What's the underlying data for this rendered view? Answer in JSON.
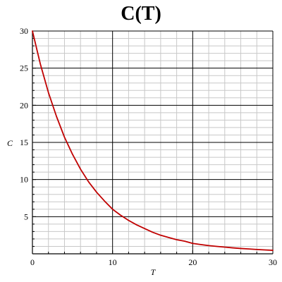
{
  "chart_data": {
    "type": "line",
    "title": "C(T)",
    "xlabel": "T",
    "ylabel": "C",
    "xlim": [
      0,
      30
    ],
    "ylim": [
      0,
      30
    ],
    "x_ticks": [
      0,
      10,
      20,
      30
    ],
    "y_ticks": [
      5,
      10,
      15,
      20,
      25,
      30
    ],
    "grid": true,
    "series_color": "#c00000",
    "series": [
      {
        "x": [
          0,
          1,
          2,
          3,
          4,
          5,
          6,
          7,
          8,
          9,
          10,
          11,
          12,
          13,
          14,
          15,
          16,
          17,
          18,
          19,
          20,
          21,
          22,
          23,
          24,
          25,
          26,
          27,
          28,
          29,
          30
        ],
        "values": [
          30,
          25.5,
          21.7,
          18.5,
          15.7,
          13.4,
          11.4,
          9.7,
          8.3,
          7.1,
          6.0,
          5.2,
          4.5,
          3.9,
          3.4,
          2.9,
          2.5,
          2.2,
          1.9,
          1.7,
          1.4,
          1.25,
          1.1,
          1.0,
          0.9,
          0.8,
          0.72,
          0.65,
          0.58,
          0.52,
          0.47
        ]
      }
    ]
  }
}
